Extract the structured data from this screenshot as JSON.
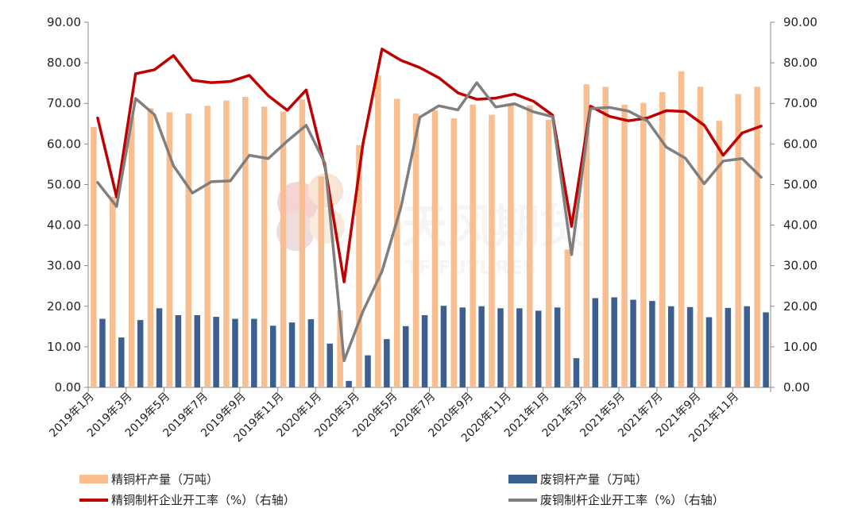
{
  "chart_data": {
    "type": "bar+line",
    "ylim": [
      0,
      90
    ],
    "y_ticks": [
      "0.00",
      "10.00",
      "20.00",
      "30.00",
      "40.00",
      "50.00",
      "60.00",
      "70.00",
      "80.00",
      "90.00"
    ],
    "y2lim": [
      0,
      90
    ],
    "y2_ticks": [
      "0.00",
      "10.00",
      "20.00",
      "30.00",
      "40.00",
      "50.00",
      "60.00",
      "70.00",
      "80.00",
      "90.00"
    ],
    "x_tick_labels": [
      "2019年1月",
      "2019年3月",
      "2019年5月",
      "2019年7月",
      "2019年9月",
      "2019年11月",
      "2020年1月",
      "2020年3月",
      "2020年5月",
      "2020年7月",
      "2020年9月",
      "2020年11月",
      "2021年1月",
      "2021年3月",
      "2021年5月",
      "2021年7月",
      "2021年9月",
      "2021年11月"
    ],
    "categories": [
      "2019-01",
      "2019-02",
      "2019-03",
      "2019-04",
      "2019-05",
      "2019-06",
      "2019-07",
      "2019-08",
      "2019-09",
      "2019-10",
      "2019-11",
      "2019-12",
      "2020-01",
      "2020-02",
      "2020-03",
      "2020-04",
      "2020-05",
      "2020-06",
      "2020-07",
      "2020-08",
      "2020-09",
      "2020-10",
      "2020-11",
      "2020-12",
      "2021-01",
      "2021-02",
      "2021-03",
      "2021-04",
      "2021-05",
      "2021-06",
      "2021-07",
      "2021-08",
      "2021-09",
      "2021-10",
      "2021-11",
      "2021-12"
    ],
    "series": [
      {
        "name": "精铜杆产量（万吨）",
        "kind": "bar",
        "axis": "left",
        "color": "#F8BE8F",
        "values": [
          64.2,
          47.0,
          66.6,
          68.8,
          67.8,
          67.5,
          69.4,
          70.7,
          71.6,
          69.2,
          68.0,
          71.0,
          52.0,
          19.0,
          59.7,
          76.9,
          71.1,
          67.5,
          68.3,
          66.3,
          69.7,
          67.2,
          70.0,
          69.5,
          66.0,
          34.0,
          74.7,
          74.1,
          69.7,
          70.1,
          72.8,
          77.9,
          74.1,
          65.7,
          72.3,
          74.1
        ]
      },
      {
        "name": "废铜杆产量（万吨）",
        "kind": "bar",
        "axis": "left",
        "color": "#3B5F91",
        "values": [
          16.9,
          12.3,
          16.6,
          19.5,
          17.8,
          17.8,
          17.4,
          16.9,
          16.9,
          15.2,
          16.0,
          16.8,
          10.8,
          1.6,
          7.9,
          11.9,
          15.1,
          17.8,
          20.1,
          19.7,
          20.0,
          19.5,
          19.5,
          18.9,
          19.7,
          7.2,
          22.0,
          22.2,
          21.6,
          21.3,
          20.0,
          19.8,
          17.3,
          19.6,
          20.0,
          18.5
        ]
      },
      {
        "name": "精铜制杆企业开工率（%）（右轴）",
        "kind": "line",
        "axis": "right",
        "color": "#C00000",
        "values": [
          66.4,
          46.9,
          77.3,
          78.3,
          81.8,
          75.7,
          75.1,
          75.4,
          76.9,
          71.9,
          68.3,
          73.3,
          54.2,
          26.0,
          60.2,
          83.4,
          80.6,
          78.8,
          76.3,
          72.6,
          71.0,
          71.3,
          72.3,
          70.5,
          67.1,
          39.7,
          69.3,
          66.8,
          65.7,
          66.4,
          68.2,
          68.0,
          64.6,
          57.2,
          62.7,
          64.4
        ]
      },
      {
        "name": "废铜制杆企业开工率（%）（右轴）",
        "kind": "line",
        "axis": "right",
        "color": "#7F7F7F",
        "values": [
          50.5,
          44.6,
          71.2,
          67.2,
          54.6,
          47.9,
          50.7,
          50.9,
          57.2,
          56.4,
          60.7,
          64.6,
          55.1,
          6.6,
          18.8,
          28.6,
          44.4,
          66.6,
          69.4,
          68.4,
          75.1,
          69.1,
          69.9,
          67.9,
          66.7,
          32.7,
          68.7,
          69.0,
          68.1,
          65.7,
          59.2,
          56.5,
          50.2,
          55.8,
          56.4,
          51.8
        ]
      }
    ],
    "legend_position": "bottom",
    "grid": false
  },
  "legend": {
    "items": [
      {
        "label": "精铜杆产量（万吨）",
        "color": "#F8BE8F"
      },
      {
        "label": "废铜杆产量（万吨）",
        "color": "#3B5F91"
      },
      {
        "label": "精铜制杆企业开工率（%）（右轴）",
        "color": "#C00000"
      },
      {
        "label": "废铜制杆企业开工率（%）（右轴）",
        "color": "#7F7F7F"
      }
    ]
  },
  "watermark": {
    "cn_text": "天风期货",
    "en_text": "TF FUTURES"
  }
}
